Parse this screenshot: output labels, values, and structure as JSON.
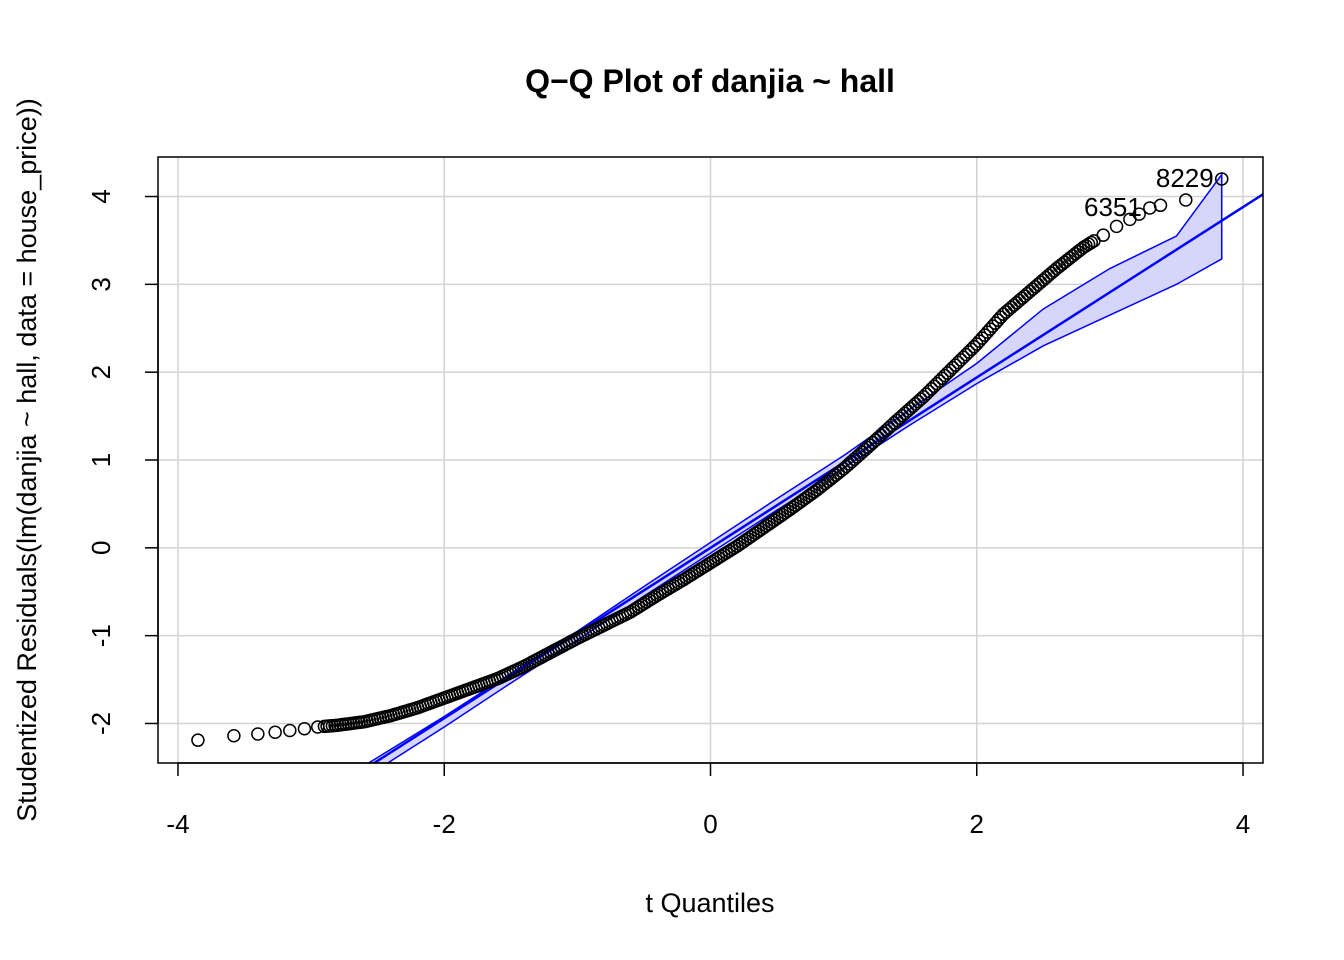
{
  "chart_data": {
    "type": "scatter",
    "title": "Q−Q Plot of danjia ~ hall",
    "xlabel": "t Quantiles",
    "ylabel": "Studentized Residuals(lm(danjia ~ hall, data = house_price))",
    "xlim": [
      -4.15,
      4.15
    ],
    "ylim": [
      -2.45,
      4.45
    ],
    "x_ticks": [
      -4,
      -2,
      0,
      2,
      4
    ],
    "x_tick_labels": [
      "-4",
      "-2",
      "0",
      "2",
      "4"
    ],
    "y_ticks": [
      -2,
      -1,
      0,
      1,
      2,
      3,
      4
    ],
    "y_tick_labels": [
      "-2",
      "-1",
      "0",
      "1",
      "2",
      "3",
      "4"
    ],
    "grid": true,
    "point_style": "open-circle",
    "series": [
      {
        "kind": "points",
        "color": "#000000",
        "curve": [
          [
            -3.85,
            -2.19
          ],
          [
            -3.58,
            -2.14
          ],
          [
            -3.4,
            -2.12
          ],
          [
            -3.27,
            -2.1
          ],
          [
            -3.16,
            -2.08
          ],
          [
            -3.05,
            -2.06
          ],
          [
            -2.95,
            -2.04
          ],
          [
            -2.8,
            -2.02
          ],
          [
            -2.6,
            -1.98
          ],
          [
            -2.4,
            -1.91
          ],
          [
            -2.2,
            -1.82
          ],
          [
            -2.0,
            -1.71
          ],
          [
            -1.8,
            -1.6
          ],
          [
            -1.6,
            -1.49
          ],
          [
            -1.4,
            -1.35
          ],
          [
            -1.2,
            -1.19
          ],
          [
            -1.0,
            -1.03
          ],
          [
            -0.8,
            -0.88
          ],
          [
            -0.6,
            -0.73
          ],
          [
            -0.4,
            -0.54
          ],
          [
            -0.2,
            -0.36
          ],
          [
            0.0,
            -0.17
          ],
          [
            0.2,
            0.02
          ],
          [
            0.4,
            0.23
          ],
          [
            0.6,
            0.44
          ],
          [
            0.8,
            0.66
          ],
          [
            1.0,
            0.9
          ],
          [
            1.2,
            1.17
          ],
          [
            1.4,
            1.45
          ],
          [
            1.6,
            1.72
          ],
          [
            1.8,
            2.02
          ],
          [
            2.0,
            2.32
          ],
          [
            2.2,
            2.66
          ],
          [
            2.4,
            2.92
          ],
          [
            2.6,
            3.18
          ],
          [
            2.8,
            3.42
          ],
          [
            2.95,
            3.56
          ],
          [
            3.05,
            3.66
          ],
          [
            3.15,
            3.74
          ],
          [
            3.22,
            3.8
          ],
          [
            3.3,
            3.87
          ],
          [
            3.38,
            3.9
          ],
          [
            3.57,
            3.96
          ],
          [
            3.84,
            4.2
          ]
        ]
      },
      {
        "kind": "reference-line",
        "color": "#0000ff",
        "slope": 0.97,
        "intercept": 0.0
      },
      {
        "kind": "confidence-envelope",
        "color": "#0000ff",
        "fill": "#d6d6fa",
        "x": [
          -2.6,
          -2.0,
          -1.5,
          -1.0,
          -0.5,
          0.0,
          0.5,
          1.0,
          1.5,
          2.0,
          2.5,
          3.0,
          3.5,
          3.84
        ],
        "lower": [
          -2.62,
          -2.04,
          -1.54,
          -1.05,
          -0.55,
          -0.06,
          0.43,
          0.91,
          1.4,
          1.87,
          2.3,
          2.65,
          3.0,
          3.29
        ],
        "upper": [
          -2.48,
          -1.92,
          -1.43,
          -0.95,
          -0.44,
          0.06,
          0.56,
          1.05,
          1.58,
          2.1,
          2.72,
          3.18,
          3.55,
          4.25
        ]
      }
    ],
    "annotations": [
      {
        "text": "8229",
        "x": 3.84,
        "y": 4.2
      },
      {
        "text": "6351",
        "x": 3.3,
        "y": 3.87
      }
    ]
  }
}
